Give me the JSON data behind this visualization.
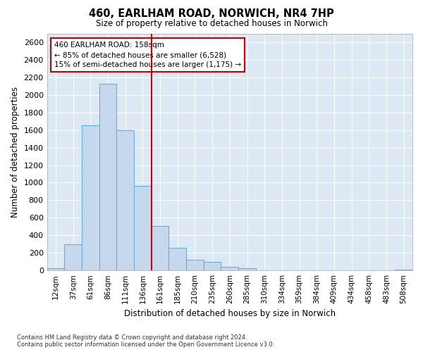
{
  "title": "460, EARLHAM ROAD, NORWICH, NR4 7HP",
  "subtitle": "Size of property relative to detached houses in Norwich",
  "xlabel": "Distribution of detached houses by size in Norwich",
  "ylabel": "Number of detached properties",
  "bar_color": "#c5d8ee",
  "bar_edge_color": "#6baed6",
  "background_color": "#dce9f5",
  "grid_color": "#ffffff",
  "vline_color": "#cc0000",
  "vline_x_idx": 6,
  "annotation_line1": "460 EARLHAM ROAD: 158sqm",
  "annotation_line2": "← 85% of detached houses are smaller (6,528)",
  "annotation_line3": "15% of semi-detached houses are larger (1,175) →",
  "footer1": "Contains HM Land Registry data © Crown copyright and database right 2024.",
  "footer2": "Contains public sector information licensed under the Open Government Licence v3.0.",
  "categories": [
    "12sqm",
    "37sqm",
    "61sqm",
    "86sqm",
    "111sqm",
    "136sqm",
    "161sqm",
    "185sqm",
    "210sqm",
    "235sqm",
    "260sqm",
    "285sqm",
    "310sqm",
    "334sqm",
    "359sqm",
    "384sqm",
    "409sqm",
    "434sqm",
    "458sqm",
    "483sqm",
    "508sqm"
  ],
  "values": [
    25,
    300,
    1650,
    2130,
    1600,
    960,
    510,
    255,
    125,
    100,
    40,
    25,
    5,
    5,
    2,
    2,
    0,
    0,
    0,
    0,
    10
  ],
  "ylim": [
    0,
    2700
  ],
  "yticks": [
    0,
    200,
    400,
    600,
    800,
    1000,
    1200,
    1400,
    1600,
    1800,
    2000,
    2200,
    2400,
    2600
  ]
}
